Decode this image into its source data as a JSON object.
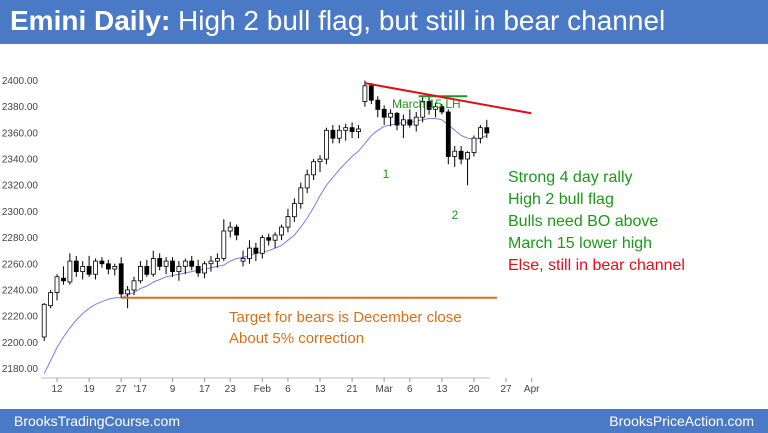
{
  "header": {
    "title_bold": "Emini Daily:",
    "title_rest": "High 2 bull flag, but still in bear channel"
  },
  "footer": {
    "left": "BrooksTradingCourse.com",
    "right": "BrooksPriceAction.com"
  },
  "colors": {
    "header_bg": "#4a7ac6",
    "bull_candle": "#ffffff",
    "bear_candle": "#000000",
    "ema": "#7d7df0",
    "trendline": "#e0101a",
    "green": "#1a9a1a",
    "orange": "#d8701a"
  },
  "chart_data": {
    "type": "candlestick",
    "title": "Emini Daily: High 2 bull flag, but still in bear channel",
    "xlabel": "",
    "ylabel": "",
    "ylim": [
      2175,
      2405
    ],
    "yticks": [
      "2180.00",
      "2200.00",
      "2220.00",
      "2240.00",
      "2260.00",
      "2280.00",
      "2300.00",
      "2320.00",
      "2340.00",
      "2360.00",
      "2380.00",
      "2400.00"
    ],
    "ytick_values": [
      2180,
      2200,
      2220,
      2240,
      2260,
      2280,
      2300,
      2320,
      2340,
      2360,
      2380,
      2400
    ],
    "xticks": [
      {
        "label": "12",
        "index": 2
      },
      {
        "label": "19",
        "index": 7
      },
      {
        "label": "27",
        "index": 12
      },
      {
        "label": "'17",
        "index": 15
      },
      {
        "label": "9",
        "index": 20
      },
      {
        "label": "17",
        "index": 25
      },
      {
        "label": "23",
        "index": 29
      },
      {
        "label": "Feb",
        "index": 34
      },
      {
        "label": "6",
        "index": 38
      },
      {
        "label": "13",
        "index": 43
      },
      {
        "label": "21",
        "index": 48
      },
      {
        "label": "Mar",
        "index": 53
      },
      {
        "label": "6",
        "index": 57
      },
      {
        "label": "13",
        "index": 62
      },
      {
        "label": "20",
        "index": 67
      },
      {
        "label": "27",
        "index": 72
      },
      {
        "label": "Apr",
        "index": 76
      }
    ],
    "candles": [
      {
        "o": 2204,
        "h": 2230,
        "l": 2201,
        "c": 2229
      },
      {
        "o": 2228,
        "h": 2240,
        "l": 2226,
        "c": 2238
      },
      {
        "o": 2238,
        "h": 2252,
        "l": 2232,
        "c": 2250
      },
      {
        "o": 2249,
        "h": 2258,
        "l": 2244,
        "c": 2247
      },
      {
        "o": 2246,
        "h": 2268,
        "l": 2244,
        "c": 2262
      },
      {
        "o": 2262,
        "h": 2266,
        "l": 2250,
        "c": 2254
      },
      {
        "o": 2254,
        "h": 2262,
        "l": 2248,
        "c": 2258
      },
      {
        "o": 2258,
        "h": 2266,
        "l": 2250,
        "c": 2252
      },
      {
        "o": 2252,
        "h": 2264,
        "l": 2248,
        "c": 2262
      },
      {
        "o": 2262,
        "h": 2265,
        "l": 2257,
        "c": 2260
      },
      {
        "o": 2260,
        "h": 2263,
        "l": 2252,
        "c": 2256
      },
      {
        "o": 2256,
        "h": 2260,
        "l": 2251,
        "c": 2258
      },
      {
        "o": 2260,
        "h": 2265,
        "l": 2234,
        "c": 2237
      },
      {
        "o": 2237,
        "h": 2243,
        "l": 2226,
        "c": 2240
      },
      {
        "o": 2240,
        "h": 2250,
        "l": 2236,
        "c": 2247
      },
      {
        "o": 2247,
        "h": 2262,
        "l": 2245,
        "c": 2258
      },
      {
        "o": 2258,
        "h": 2263,
        "l": 2250,
        "c": 2252
      },
      {
        "o": 2252,
        "h": 2270,
        "l": 2250,
        "c": 2264
      },
      {
        "o": 2264,
        "h": 2268,
        "l": 2255,
        "c": 2258
      },
      {
        "o": 2258,
        "h": 2265,
        "l": 2252,
        "c": 2262
      },
      {
        "o": 2262,
        "h": 2265,
        "l": 2250,
        "c": 2254
      },
      {
        "o": 2254,
        "h": 2262,
        "l": 2247,
        "c": 2258
      },
      {
        "o": 2258,
        "h": 2264,
        "l": 2252,
        "c": 2262
      },
      {
        "o": 2262,
        "h": 2266,
        "l": 2255,
        "c": 2258
      },
      {
        "o": 2258,
        "h": 2263,
        "l": 2250,
        "c": 2253
      },
      {
        "o": 2253,
        "h": 2262,
        "l": 2249,
        "c": 2260
      },
      {
        "o": 2260,
        "h": 2266,
        "l": 2254,
        "c": 2262
      },
      {
        "o": 2262,
        "h": 2268,
        "l": 2257,
        "c": 2264
      },
      {
        "o": 2264,
        "h": 2294,
        "l": 2262,
        "c": 2285
      },
      {
        "o": 2285,
        "h": 2292,
        "l": 2280,
        "c": 2288
      },
      {
        "o": 2288,
        "h": 2290,
        "l": 2278,
        "c": 2282
      },
      {
        "o": 2262,
        "h": 2270,
        "l": 2258,
        "c": 2264
      },
      {
        "o": 2264,
        "h": 2278,
        "l": 2260,
        "c": 2272
      },
      {
        "o": 2272,
        "h": 2276,
        "l": 2262,
        "c": 2268
      },
      {
        "o": 2268,
        "h": 2282,
        "l": 2264,
        "c": 2280
      },
      {
        "o": 2280,
        "h": 2283,
        "l": 2274,
        "c": 2278
      },
      {
        "o": 2278,
        "h": 2284,
        "l": 2272,
        "c": 2282
      },
      {
        "o": 2282,
        "h": 2290,
        "l": 2278,
        "c": 2288
      },
      {
        "o": 2288,
        "h": 2302,
        "l": 2284,
        "c": 2296
      },
      {
        "o": 2296,
        "h": 2310,
        "l": 2292,
        "c": 2306
      },
      {
        "o": 2306,
        "h": 2322,
        "l": 2302,
        "c": 2318
      },
      {
        "o": 2318,
        "h": 2332,
        "l": 2314,
        "c": 2328
      },
      {
        "o": 2328,
        "h": 2340,
        "l": 2324,
        "c": 2338
      },
      {
        "o": 2338,
        "h": 2343,
        "l": 2330,
        "c": 2340
      },
      {
        "o": 2340,
        "h": 2364,
        "l": 2336,
        "c": 2362
      },
      {
        "o": 2362,
        "h": 2366,
        "l": 2352,
        "c": 2356
      },
      {
        "o": 2356,
        "h": 2366,
        "l": 2352,
        "c": 2362
      },
      {
        "o": 2362,
        "h": 2367,
        "l": 2354,
        "c": 2364
      },
      {
        "o": 2364,
        "h": 2368,
        "l": 2356,
        "c": 2361
      },
      {
        "o": 2361,
        "h": 2366,
        "l": 2356,
        "c": 2363
      },
      {
        "o": 2384,
        "h": 2400,
        "l": 2380,
        "c": 2396
      },
      {
        "o": 2396,
        "h": 2398,
        "l": 2382,
        "c": 2385
      },
      {
        "o": 2385,
        "h": 2388,
        "l": 2372,
        "c": 2378
      },
      {
        "o": 2378,
        "h": 2381,
        "l": 2366,
        "c": 2372
      },
      {
        "o": 2372,
        "h": 2378,
        "l": 2365,
        "c": 2375
      },
      {
        "o": 2375,
        "h": 2376,
        "l": 2362,
        "c": 2366
      },
      {
        "o": 2366,
        "h": 2374,
        "l": 2356,
        "c": 2370
      },
      {
        "o": 2370,
        "h": 2378,
        "l": 2364,
        "c": 2366
      },
      {
        "o": 2366,
        "h": 2376,
        "l": 2361,
        "c": 2372
      },
      {
        "o": 2372,
        "h": 2388,
        "l": 2368,
        "c": 2384
      },
      {
        "o": 2384,
        "h": 2388,
        "l": 2374,
        "c": 2378
      },
      {
        "o": 2378,
        "h": 2383,
        "l": 2372,
        "c": 2380
      },
      {
        "o": 2380,
        "h": 2382,
        "l": 2374,
        "c": 2376
      },
      {
        "o": 2376,
        "h": 2378,
        "l": 2336,
        "c": 2342
      },
      {
        "o": 2342,
        "h": 2350,
        "l": 2334,
        "c": 2346
      },
      {
        "o": 2346,
        "h": 2350,
        "l": 2336,
        "c": 2340
      },
      {
        "o": 2340,
        "h": 2346,
        "l": 2320,
        "c": 2345
      },
      {
        "o": 2345,
        "h": 2358,
        "l": 2342,
        "c": 2356
      },
      {
        "o": 2356,
        "h": 2366,
        "l": 2352,
        "c": 2364
      },
      {
        "o": 2364,
        "h": 2370,
        "l": 2356,
        "c": 2360
      }
    ],
    "ema20": [
      2176,
      2186,
      2196,
      2204,
      2211,
      2217,
      2222,
      2226,
      2229,
      2231,
      2233,
      2234,
      2234,
      2236,
      2238,
      2241,
      2243,
      2246,
      2248,
      2250,
      2251,
      2252,
      2253,
      2254,
      2255,
      2256,
      2257,
      2258,
      2259,
      2262,
      2264,
      2265,
      2266,
      2268,
      2269,
      2270,
      2272,
      2274,
      2278,
      2282,
      2288,
      2295,
      2303,
      2312,
      2320,
      2326,
      2332,
      2337,
      2342,
      2346,
      2352,
      2358,
      2362,
      2365,
      2366,
      2367,
      2368,
      2368,
      2369,
      2370,
      2371,
      2371,
      2370,
      2366,
      2362,
      2358,
      2356,
      2355,
      2356,
      2358
    ],
    "annotations": [
      {
        "id": "march15_lh",
        "text": "March 15 LH"
      },
      {
        "id": "point1",
        "text": "1"
      },
      {
        "id": "point2",
        "text": "2"
      },
      {
        "id": "target",
        "text": "Target for bears is December close"
      },
      {
        "id": "correction",
        "text": "About 5% correction"
      }
    ],
    "commentary": [
      {
        "text": "Strong 4 day rally",
        "color": "green"
      },
      {
        "text": "High 2 bull flag",
        "color": "green"
      },
      {
        "text": "Bulls need BO above",
        "color": "green"
      },
      {
        "text": "March 15 lower high",
        "color": "green"
      },
      {
        "text": "Else, still in bear channel",
        "color": "red"
      }
    ],
    "lines": {
      "target_level": 2234,
      "lh_level": 2388,
      "trendline": {
        "from": {
          "index": 50,
          "value": 2398
        },
        "to": {
          "index": 75,
          "value": 2375
        }
      }
    }
  }
}
